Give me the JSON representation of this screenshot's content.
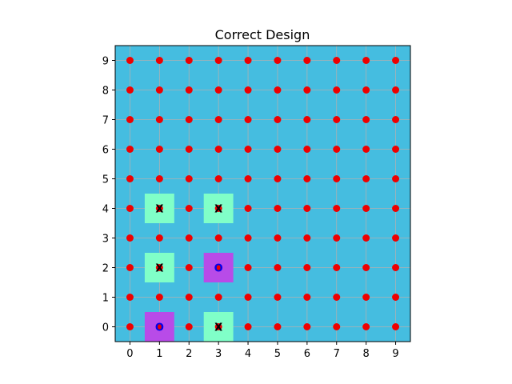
{
  "chart_data": {
    "type": "scatter",
    "title": "Correct Design",
    "xlabel": "",
    "ylabel": "",
    "xlim": [
      -0.5,
      9.5
    ],
    "ylim": [
      -0.5,
      9.5
    ],
    "x_ticks": [
      "0",
      "1",
      "2",
      "3",
      "4",
      "5",
      "6",
      "7",
      "8",
      "9"
    ],
    "y_ticks": [
      "0",
      "1",
      "2",
      "3",
      "4",
      "5",
      "6",
      "7",
      "8",
      "9"
    ],
    "grid": true,
    "background_color": "#45bde0",
    "point_color": "#ee0000",
    "grid_points": {
      "x_range": [
        0,
        9
      ],
      "y_range": [
        0,
        9
      ]
    },
    "cells": [
      {
        "x": 1,
        "y": 4,
        "label": "X",
        "fill": "#80ffc8",
        "text_color": "#000000"
      },
      {
        "x": 3,
        "y": 4,
        "label": "X",
        "fill": "#80ffc8",
        "text_color": "#000000"
      },
      {
        "x": 1,
        "y": 2,
        "label": "X",
        "fill": "#80ffc8",
        "text_color": "#000000"
      },
      {
        "x": 3,
        "y": 2,
        "label": "O",
        "fill": "#b84be8",
        "text_color": "#0000ee"
      },
      {
        "x": 1,
        "y": 0,
        "label": "O",
        "fill": "#b84be8",
        "text_color": "#0000ee"
      },
      {
        "x": 3,
        "y": 0,
        "label": "X",
        "fill": "#80ffc8",
        "text_color": "#000000"
      }
    ]
  }
}
